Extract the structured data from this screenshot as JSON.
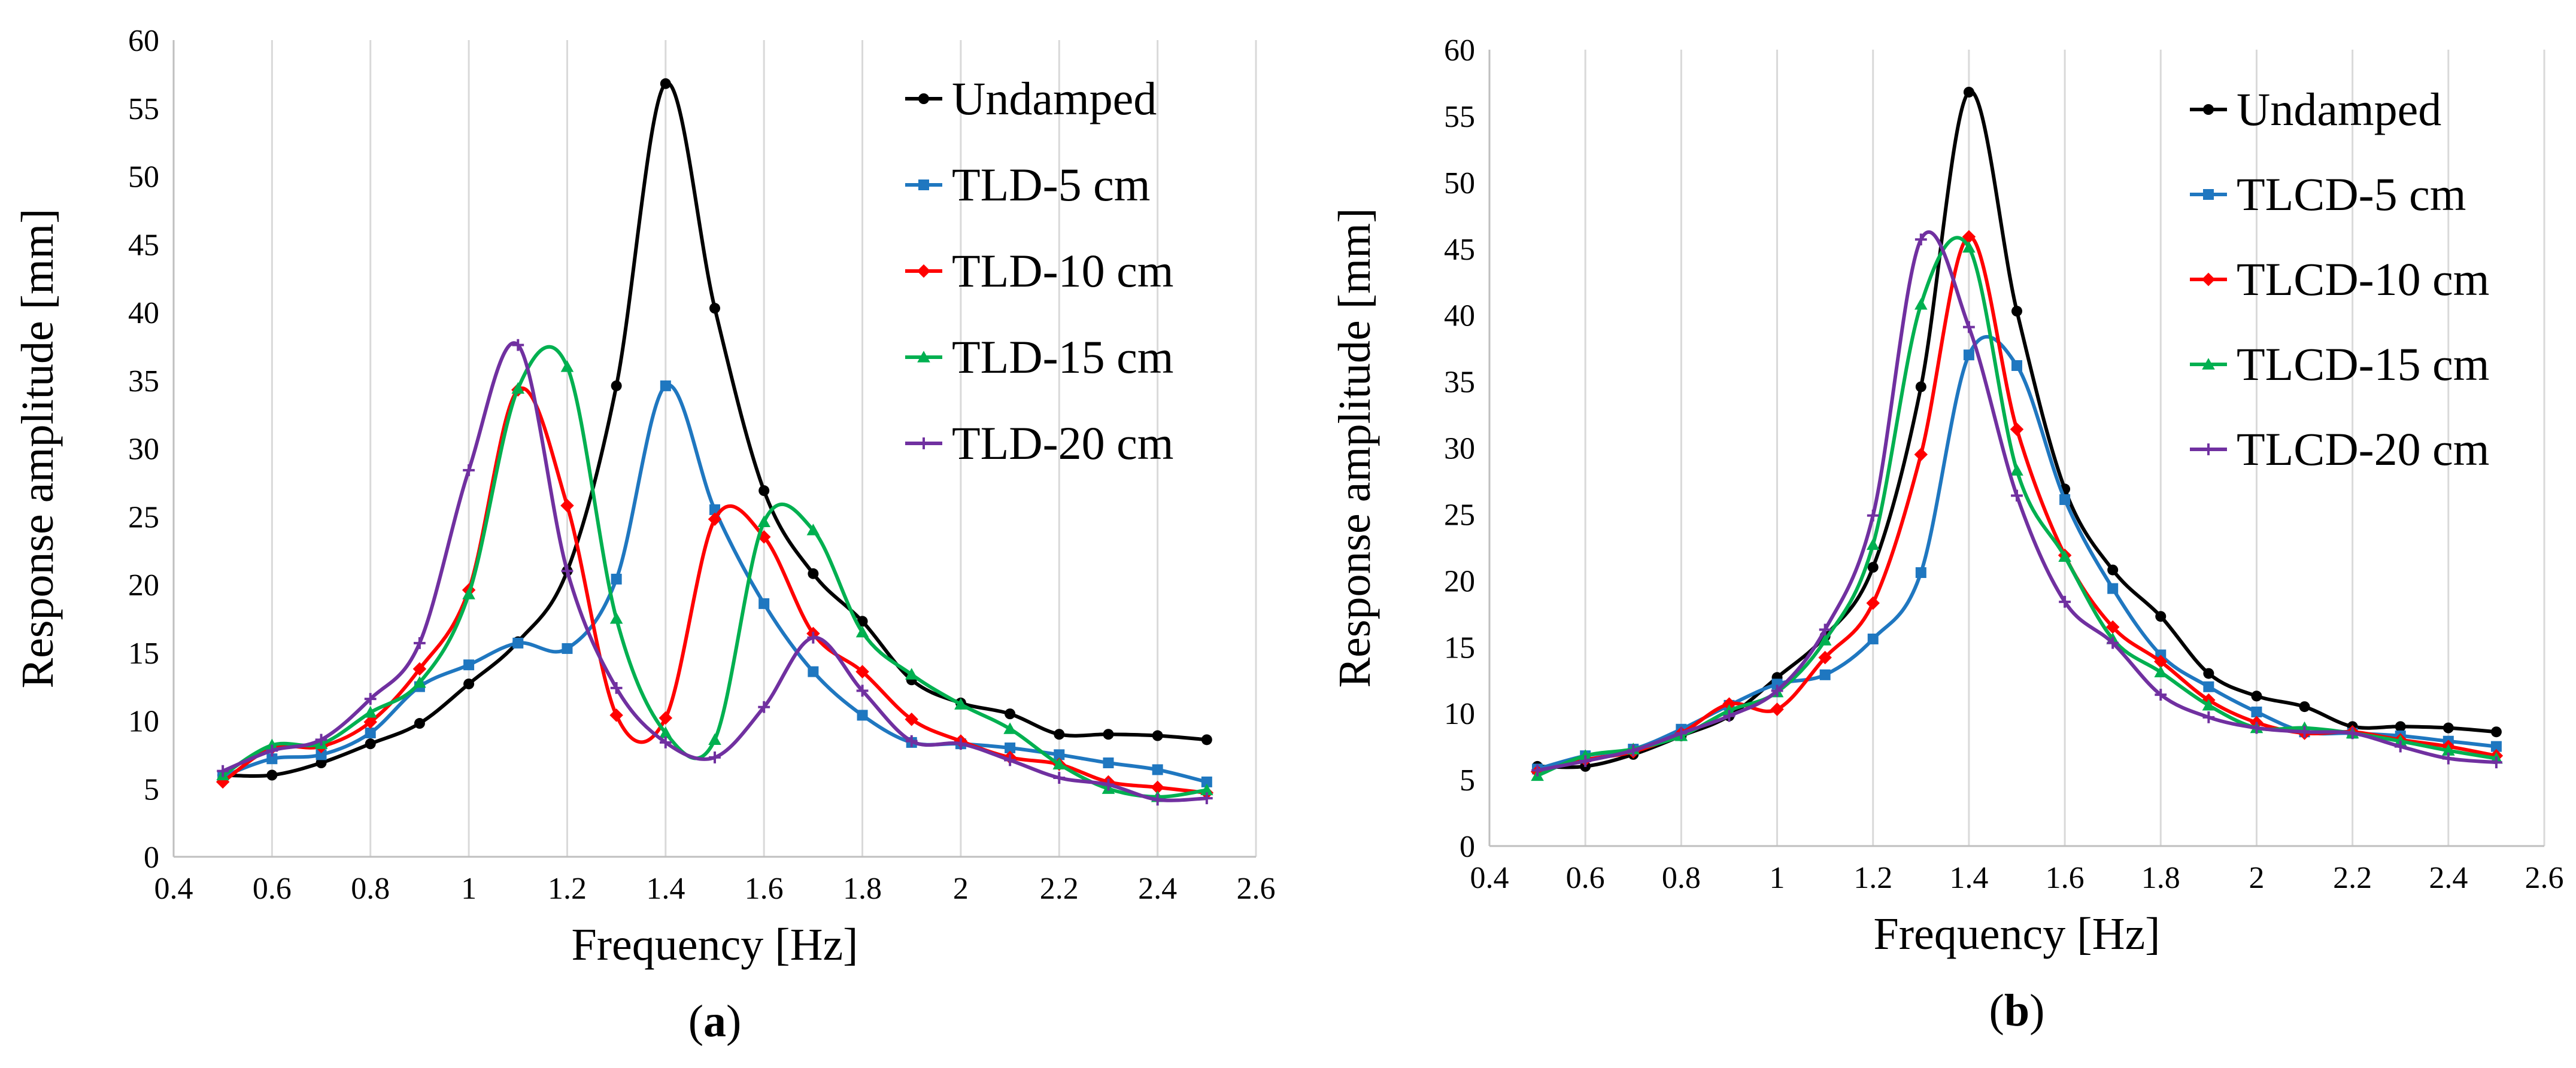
{
  "chart_data": [
    {
      "type": "line",
      "panel_label": "(a)",
      "xlabel": "Frequency [Hz]",
      "ylabel": "Response amplitude [mm]",
      "xlim": [
        0.4,
        2.6
      ],
      "ylim": [
        0,
        60
      ],
      "x_ticks": [
        "0.4",
        "0.6",
        "0.8",
        "1",
        "1.2",
        "1.4",
        "1.6",
        "1.8",
        "2",
        "2.2",
        "2.4",
        "2.6"
      ],
      "y_ticks": [
        "0",
        "5",
        "10",
        "15",
        "20",
        "25",
        "30",
        "35",
        "40",
        "45",
        "50",
        "55",
        "60"
      ],
      "grid": "vertical",
      "legend_position": "top-right",
      "x": [
        0.5,
        0.6,
        0.7,
        0.8,
        0.9,
        1.0,
        1.1,
        1.2,
        1.3,
        1.4,
        1.5,
        1.6,
        1.7,
        1.8,
        1.9,
        2.0,
        2.1,
        2.2,
        2.3,
        2.4,
        2.5
      ],
      "series": [
        {
          "name": "Undamped",
          "color": "#000000",
          "marker": "circle",
          "values": [
            6.0,
            6.0,
            6.9,
            8.3,
            9.8,
            12.7,
            15.8,
            21.0,
            34.6,
            56.8,
            40.3,
            26.9,
            20.8,
            17.3,
            13.0,
            11.3,
            10.5,
            9.0,
            9.0,
            8.9,
            8.6
          ]
        },
        {
          "name": "TLD-5 cm",
          "color": "#1f77c0",
          "marker": "square",
          "values": [
            5.9,
            7.2,
            7.5,
            9.1,
            12.5,
            14.1,
            15.7,
            15.3,
            20.4,
            34.6,
            25.5,
            18.6,
            13.6,
            10.4,
            8.4,
            8.3,
            8.0,
            7.5,
            6.9,
            6.4,
            5.5
          ]
        },
        {
          "name": "TLD-10 cm",
          "color": "#ff0000",
          "marker": "diamond",
          "values": [
            5.5,
            8.0,
            8.1,
            9.9,
            13.8,
            19.6,
            34.3,
            25.8,
            10.4,
            10.2,
            24.8,
            23.5,
            16.4,
            13.6,
            10.1,
            8.5,
            7.3,
            6.8,
            5.5,
            5.1,
            4.7
          ]
        },
        {
          "name": "TLD-15 cm",
          "color": "#00b050",
          "marker": "triangle",
          "values": [
            6.0,
            8.2,
            8.3,
            10.6,
            12.8,
            19.3,
            34.4,
            36.0,
            17.5,
            9.1,
            8.6,
            24.6,
            24.0,
            16.5,
            13.4,
            11.2,
            9.4,
            6.8,
            5.0,
            4.4,
            4.9
          ]
        },
        {
          "name": "TLD-20 cm",
          "color": "#7030a0",
          "marker": "plus",
          "values": [
            6.3,
            7.8,
            8.6,
            11.6,
            15.7,
            28.4,
            37.6,
            21.0,
            12.4,
            8.4,
            7.3,
            11.0,
            16.1,
            12.2,
            8.5,
            8.3,
            7.1,
            5.8,
            5.3,
            4.2,
            4.3
          ]
        }
      ]
    },
    {
      "type": "line",
      "panel_label": "(b)",
      "xlabel": "Frequency [Hz]",
      "ylabel": "Response amplitude [mm]",
      "xlim": [
        0.4,
        2.6
      ],
      "ylim": [
        0,
        60
      ],
      "x_ticks": [
        "0.4",
        "0.6",
        "0.8",
        "1",
        "1.2",
        "1.4",
        "1.6",
        "1.8",
        "2",
        "2.2",
        "2.4",
        "2.6"
      ],
      "y_ticks": [
        "0",
        "5",
        "10",
        "15",
        "20",
        "25",
        "30",
        "35",
        "40",
        "45",
        "50",
        "55",
        "60"
      ],
      "grid": "vertical",
      "legend_position": "top-right",
      "x": [
        0.5,
        0.6,
        0.7,
        0.8,
        0.9,
        1.0,
        1.1,
        1.2,
        1.3,
        1.4,
        1.5,
        1.6,
        1.7,
        1.8,
        1.9,
        2.0,
        2.1,
        2.2,
        2.3,
        2.4,
        2.5
      ],
      "series": [
        {
          "name": "Undamped",
          "color": "#000000",
          "marker": "circle",
          "values": [
            6.0,
            6.0,
            6.9,
            8.3,
            9.8,
            12.7,
            15.8,
            21.0,
            34.6,
            56.8,
            40.3,
            26.9,
            20.8,
            17.3,
            13.0,
            11.3,
            10.5,
            9.0,
            9.0,
            8.9,
            8.6
          ]
        },
        {
          "name": "TLCD-5 cm",
          "color": "#1f77c0",
          "marker": "square",
          "values": [
            5.8,
            6.8,
            7.3,
            8.8,
            10.6,
            12.2,
            12.9,
            15.6,
            20.6,
            37.0,
            36.2,
            26.1,
            19.4,
            14.4,
            12.0,
            10.1,
            8.6,
            8.5,
            8.3,
            7.9,
            7.5
          ]
        },
        {
          "name": "TLCD-10 cm",
          "color": "#ff0000",
          "marker": "diamond",
          "values": [
            5.6,
            6.5,
            7.1,
            8.5,
            10.7,
            10.3,
            14.2,
            18.3,
            29.5,
            45.9,
            31.4,
            21.9,
            16.5,
            13.9,
            11.0,
            9.3,
            8.5,
            8.6,
            8.0,
            7.5,
            6.8
          ]
        },
        {
          "name": "TLCD-15 cm",
          "color": "#00b050",
          "marker": "triangle",
          "values": [
            5.3,
            6.8,
            7.3,
            8.3,
            10.2,
            11.6,
            15.5,
            22.7,
            40.8,
            45.1,
            28.3,
            21.8,
            15.6,
            13.1,
            10.6,
            8.9,
            8.9,
            8.5,
            7.9,
            7.2,
            6.6
          ]
        },
        {
          "name": "TLCD-20 cm",
          "color": "#7030a0",
          "marker": "plus",
          "values": [
            5.7,
            6.4,
            7.2,
            8.5,
            9.8,
            11.7,
            16.3,
            24.9,
            45.7,
            39.1,
            26.4,
            18.4,
            15.3,
            11.4,
            9.7,
            8.9,
            8.6,
            8.5,
            7.5,
            6.6,
            6.3
          ]
        }
      ]
    }
  ]
}
